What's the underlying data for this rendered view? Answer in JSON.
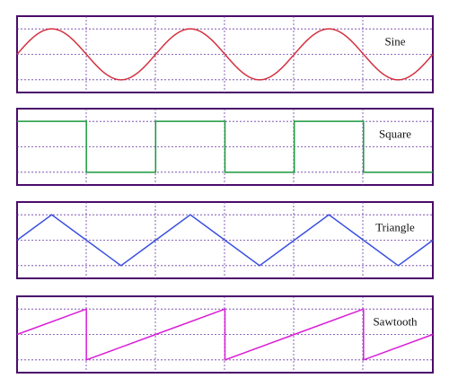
{
  "chart_data": [
    {
      "type": "line",
      "title": "",
      "series": [
        {
          "name": "Sine",
          "waveform": "sine",
          "periods_shown": 3,
          "color": "#d4313f"
        }
      ],
      "grid": true
    },
    {
      "type": "line",
      "title": "",
      "series": [
        {
          "name": "Square",
          "waveform": "square",
          "periods_shown": 3,
          "color": "#1a9a3c"
        }
      ],
      "grid": true
    },
    {
      "type": "line",
      "title": "",
      "series": [
        {
          "name": "Triangle",
          "waveform": "triangle",
          "periods_shown": 3,
          "color": "#3a4fe0"
        }
      ],
      "grid": true
    },
    {
      "type": "line",
      "title": "",
      "series": [
        {
          "name": "Sawtooth",
          "waveform": "sawtooth",
          "periods_shown": 3,
          "color": "#d91ed6"
        }
      ],
      "grid": true
    }
  ],
  "frame_color": "#4b0b6b",
  "grid_color": "#6a3aa8"
}
